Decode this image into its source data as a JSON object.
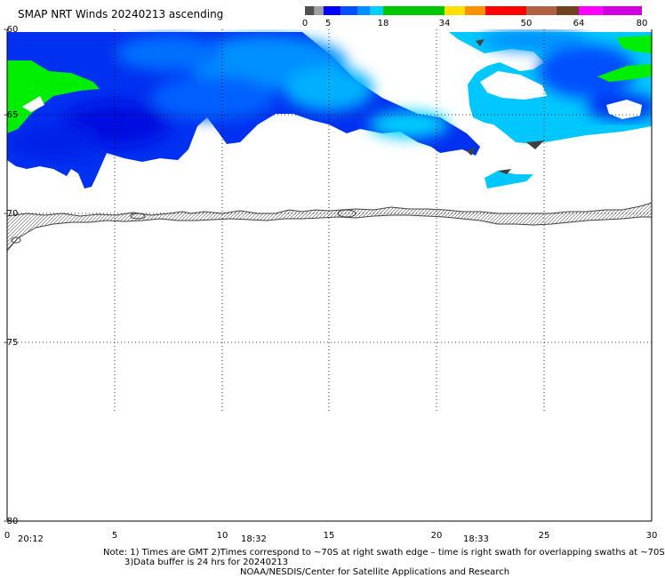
{
  "title": "SMAP NRT Winds 20240213 ascending",
  "colorbar": {
    "ticks": [
      "0",
      "5",
      "18",
      "34",
      "50",
      "64",
      "80"
    ],
    "bins": [
      {
        "from": 0,
        "to": 2,
        "color": "#505050"
      },
      {
        "from": 2,
        "to": 4,
        "color": "#a0a0a0"
      },
      {
        "from": 4,
        "to": 8,
        "color": "#0000ff"
      },
      {
        "from": 8,
        "to": 12,
        "color": "#0050ff"
      },
      {
        "from": 12,
        "to": 15,
        "color": "#0090ff"
      },
      {
        "from": 15,
        "to": 18,
        "color": "#00d0ff"
      },
      {
        "from": 18,
        "to": 34,
        "color": "#00c800"
      },
      {
        "from": 34,
        "to": 38,
        "color": "#ffe000"
      },
      {
        "from": 38,
        "to": 42,
        "color": "#ff9000"
      },
      {
        "from": 42,
        "to": 50,
        "color": "#ff0000"
      },
      {
        "from": 50,
        "to": 58,
        "color": "#b06040"
      },
      {
        "from": 58,
        "to": 64,
        "color": "#704020"
      },
      {
        "from": 64,
        "to": 70,
        "color": "#ff00ff"
      },
      {
        "from": 70,
        "to": 80,
        "color": "#d000e0"
      }
    ]
  },
  "map": {
    "lon_range": [
      0,
      30
    ],
    "lat_range": [
      -60,
      -80
    ],
    "x_ticks": [
      "0",
      "5",
      "10",
      "15",
      "20",
      "25",
      "30"
    ],
    "y_ticks": [
      "-60",
      "-65",
      "-70",
      "-75",
      "-80"
    ],
    "time_labels": [
      "20:12",
      "18:32",
      "18:33"
    ],
    "grid": true
  },
  "notes": {
    "line1": "Note: 1) Times are GMT 2)Times correspond to ~70S at right swath edge – time is right swath for overlapping swaths at ~70S",
    "line2": "3)Data buffer is 24 hrs for 20240213",
    "line3": "NOAA/NESDIS/Center for Satellite Applications and Research"
  }
}
